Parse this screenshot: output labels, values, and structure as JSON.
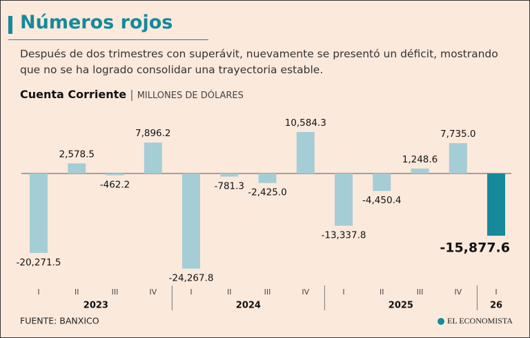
{
  "chart_data": {
    "type": "bar",
    "title": "Números rojos",
    "subtitle": "Después de dos trimestres con superávit, nuevamente se presentó un déficit, mostrando que no se ha logrado consolidar una trayectoria estable.",
    "chart_title": "Cuenta Corriente",
    "unit": "MILLONES DE DÓLARES",
    "categories": [
      "I",
      "II",
      "III",
      "IV",
      "I",
      "II",
      "III",
      "IV",
      "I",
      "II",
      "III",
      "IV",
      "I"
    ],
    "groups": [
      "2023",
      "2024",
      "2025",
      "26"
    ],
    "values": [
      -20271.5,
      2578.5,
      -462.2,
      7896.2,
      -24267.8,
      -781.3,
      -2425.0,
      10584.3,
      -13337.8,
      -4450.4,
      1248.6,
      7735.0,
      -15877.6
    ],
    "value_labels": [
      "-20,271.5",
      "2,578.5",
      "-462.2",
      "7,896.2",
      "-24,267.8",
      "-781.3",
      "-2,425.0",
      "10,584.3",
      "-13,337.8",
      "-4,450.4",
      "1,248.6",
      "7,735.0",
      "-15,877.6"
    ],
    "colors": [
      "#a5cdd6",
      "#a5cdd6",
      "#a5cdd6",
      "#a5cdd6",
      "#a5cdd6",
      "#a5cdd6",
      "#a5cdd6",
      "#a5cdd6",
      "#a5cdd6",
      "#a5cdd6",
      "#a5cdd6",
      "#a5cdd6",
      "#16899b"
    ],
    "source": "FUENTE: BANXICO",
    "brand": "EL ECONOMISTA"
  }
}
